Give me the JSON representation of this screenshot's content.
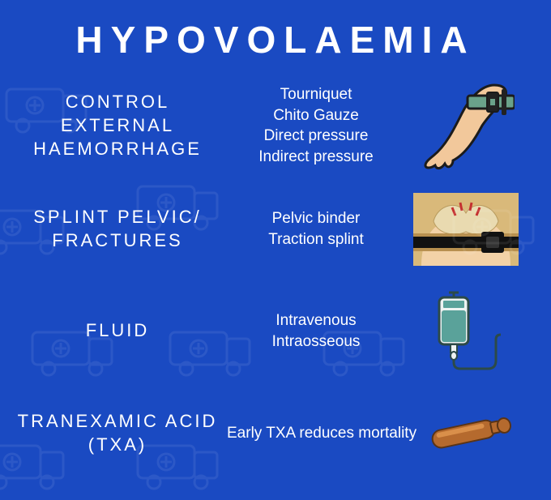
{
  "title": "HYPOVOLAEMIA",
  "background_color": "#1a4ac2",
  "text_color": "#ffffff",
  "title_fontsize": 46,
  "title_letterspacing": 10,
  "heading_fontsize": 22,
  "heading_letterspacing": 3,
  "item_fontsize": 19,
  "rows": [
    {
      "heading": "CONTROL EXTERNAL HAEMORRHAGE",
      "items": [
        "Tourniquet",
        "Chito Gauze",
        "Direct pressure",
        "Indirect pressure"
      ],
      "icon": "tourniquet-arm",
      "icon_colors": {
        "skin": "#f2c89b",
        "outline": "#1b1b1b",
        "strap": "#6aa28a",
        "buckle": "#222"
      }
    },
    {
      "heading": "SPLINT PELVIC/ FRACTURES",
      "items": [
        "Pelvic binder",
        "Traction splint"
      ],
      "icon": "pelvic-binder",
      "icon_colors": {
        "skin": "#f3d2a7",
        "bone": "#e9dab0",
        "strap": "#111",
        "blood": "#c53030",
        "bg": "#d9b97a"
      }
    },
    {
      "heading": "FLUID",
      "items": [
        "Intravenous",
        "Intraosseous"
      ],
      "icon": "iv-bag",
      "icon_colors": {
        "bag": "#eef3f2",
        "fluid": "#5aa29a",
        "outline": "#2c4a48",
        "tube": "#2c4a48"
      }
    },
    {
      "heading": "TRANEXAMIC ACID (TXA)",
      "items": [
        "Early TXA reduces mortality"
      ],
      "icon": "ampoule",
      "icon_colors": {
        "body": "#b56a2e",
        "highlight": "#d98f4a",
        "outline": "#5a3416"
      }
    }
  ]
}
